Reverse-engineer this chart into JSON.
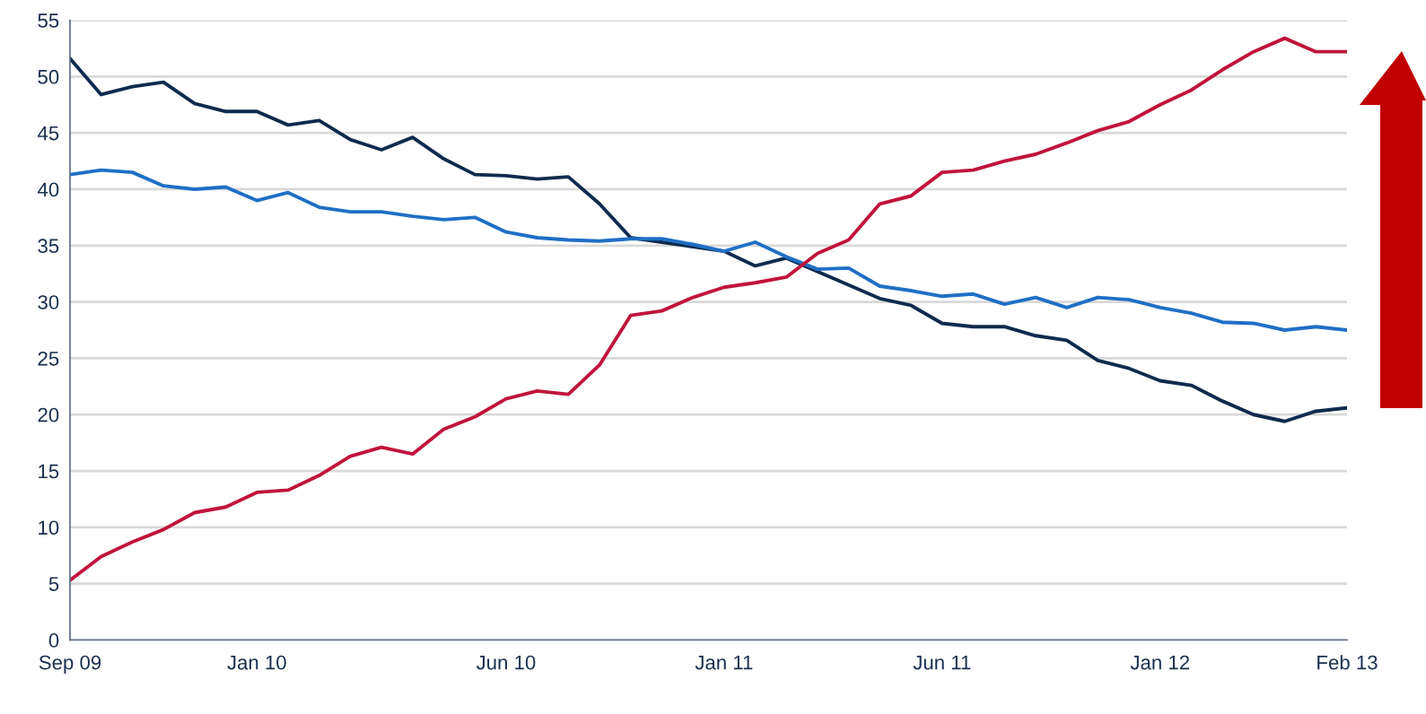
{
  "chart_data": {
    "type": "line",
    "categories": [
      "Sep 09",
      null,
      null,
      null,
      null,
      null,
      "Jan 10",
      null,
      null,
      null,
      null,
      null,
      null,
      null,
      "Jun 10",
      null,
      null,
      null,
      null,
      null,
      null,
      "Jan 11",
      null,
      null,
      null,
      null,
      null,
      null,
      "Jun 11",
      null,
      null,
      null,
      null,
      null,
      null,
      "Jan 12",
      null,
      null,
      null,
      null,
      null,
      "Feb 13"
    ],
    "series": [
      {
        "color": "#0d2b4e",
        "values": [
          51.6,
          48.4,
          49.1,
          49.5,
          47.6,
          46.9,
          46.9,
          45.7,
          46.1,
          44.4,
          43.5,
          44.6,
          42.7,
          41.3,
          41.2,
          40.9,
          41.1,
          38.7,
          35.7,
          35.3,
          34.9,
          34.5,
          33.2,
          33.9,
          32.7,
          31.5,
          30.3,
          29.7,
          28.1,
          27.8,
          27.8,
          27.0,
          26.6,
          24.8,
          24.1,
          23.0,
          22.6,
          21.2,
          20.0,
          19.4,
          20.3,
          20.6
        ]
      },
      {
        "color": "#1f6fc5",
        "values": [
          41.3,
          41.7,
          41.5,
          40.3,
          40.0,
          40.2,
          39.0,
          39.7,
          38.4,
          38.0,
          38.0,
          37.6,
          37.3,
          37.5,
          36.2,
          35.7,
          35.5,
          35.4,
          35.6,
          35.6,
          35.1,
          34.5,
          35.3,
          34.0,
          32.9,
          33.0,
          31.4,
          31.0,
          30.5,
          30.7,
          29.8,
          30.4,
          29.5,
          30.4,
          30.2,
          29.5,
          29.0,
          28.2,
          28.1,
          27.5,
          27.8,
          27.5
        ]
      },
      {
        "color": "#c0143c",
        "values": [
          5.3,
          7.4,
          8.7,
          9.8,
          11.3,
          11.8,
          13.1,
          13.3,
          14.6,
          16.3,
          17.1,
          16.5,
          18.7,
          19.8,
          21.4,
          22.1,
          21.8,
          24.4,
          28.8,
          29.2,
          30.4,
          31.3,
          31.7,
          32.2,
          34.3,
          35.5,
          38.7,
          39.4,
          41.5,
          41.7,
          42.5,
          43.1,
          44.1,
          45.2,
          46.0,
          47.5,
          48.8,
          50.6,
          52.2,
          53.4,
          52.2,
          52.2
        ]
      }
    ],
    "ylim": [
      0,
      55
    ],
    "yticks": [
      0,
      5,
      10,
      15,
      20,
      25,
      30,
      35,
      40,
      45,
      50,
      55
    ],
    "grid": "y",
    "marker": "none",
    "line_style": "solid"
  }
}
